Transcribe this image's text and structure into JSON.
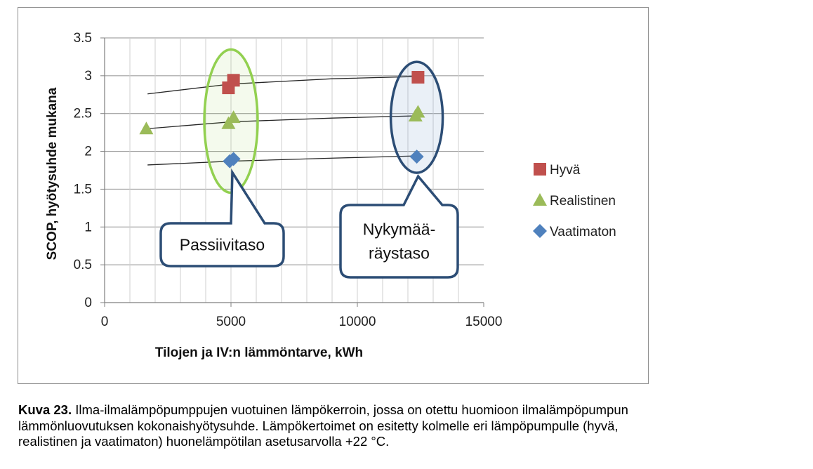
{
  "chart_data": {
    "type": "scatter",
    "xlabel": "Tilojen ja IV:n lämmöntarve, kWh",
    "ylabel": "SCOP, hyötysuhde mukana",
    "xlim": [
      0,
      15000
    ],
    "ylim": [
      0,
      3.5
    ],
    "x_ticks": [
      "0",
      "5000",
      "10000",
      "15000"
    ],
    "y_ticks": [
      "0",
      "0.5",
      "1",
      "1.5",
      "2",
      "2.5",
      "3",
      "3.5"
    ],
    "grid": true,
    "legend_position": "right",
    "series": [
      {
        "name": "Hyvä",
        "marker": "square",
        "color": "#c0504d",
        "points": [
          {
            "x": 4900,
            "y": 2.84
          },
          {
            "x": 5100,
            "y": 2.94
          },
          {
            "x": 12400,
            "y": 2.98
          }
        ]
      },
      {
        "name": "Realistinen",
        "marker": "triangle",
        "color": "#9bbb59",
        "points": [
          {
            "x": 1650,
            "y": 2.3
          },
          {
            "x": 4900,
            "y": 2.37
          },
          {
            "x": 5100,
            "y": 2.45
          },
          {
            "x": 12300,
            "y": 2.47
          },
          {
            "x": 12400,
            "y": 2.52
          }
        ]
      },
      {
        "name": "Vaatimaton",
        "marker": "diamond",
        "color": "#4f81bd",
        "points": [
          {
            "x": 4950,
            "y": 1.87
          },
          {
            "x": 5100,
            "y": 1.9
          },
          {
            "x": 12350,
            "y": 1.93
          }
        ]
      }
    ],
    "trendlines": [
      {
        "series": "Hyvä",
        "points": [
          {
            "x": 1700,
            "y": 2.76
          },
          {
            "x": 5000,
            "y": 2.89
          },
          {
            "x": 9000,
            "y": 2.96
          },
          {
            "x": 12400,
            "y": 2.99
          }
        ]
      },
      {
        "series": "Realistinen",
        "points": [
          {
            "x": 1700,
            "y": 2.3
          },
          {
            "x": 5000,
            "y": 2.39
          },
          {
            "x": 9000,
            "y": 2.44
          },
          {
            "x": 12400,
            "y": 2.47
          }
        ]
      },
      {
        "series": "Vaatimaton",
        "points": [
          {
            "x": 1700,
            "y": 1.82
          },
          {
            "x": 5000,
            "y": 1.87
          },
          {
            "x": 9000,
            "y": 1.91
          },
          {
            "x": 12400,
            "y": 1.94
          }
        ]
      }
    ],
    "annotations": [
      {
        "label": "Passiivitaso",
        "ellipse_color": "#92d050"
      },
      {
        "label_lines": [
          "Nykymää-",
          "räystaso"
        ],
        "ellipse_color": "#2c4d75"
      }
    ]
  },
  "caption": {
    "label": "Kuva 23.",
    "lines": [
      "Ilma-ilmalämpöpumppujen vuotuinen lämpökerroin, jossa on otettu huomioon ilmalämpöpumpun",
      "lämmönluovutuksen kokonaishyötysuhde. Lämpökertoimet on esitetty kolmelle eri lämpöpumpulle (hyvä,",
      "realistinen ja vaatimaton) huonelämpötilan asetusarvolla +22 °C."
    ]
  }
}
